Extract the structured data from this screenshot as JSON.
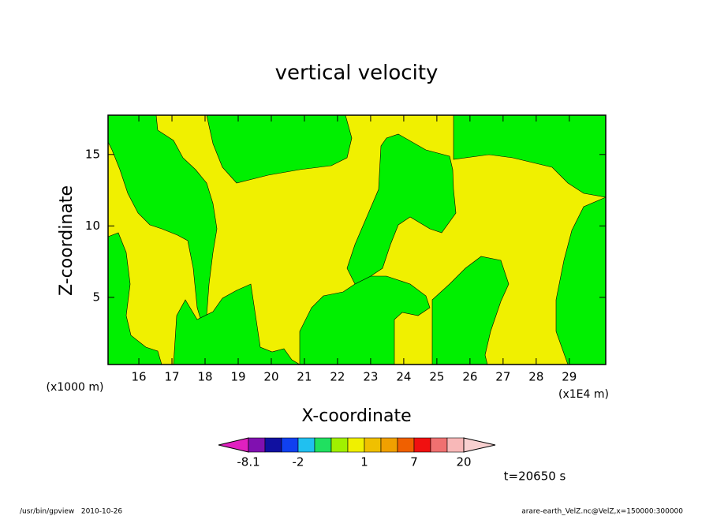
{
  "chart_data": {
    "type": "contour",
    "title": "vertical velocity",
    "x_label": "X-coordinate",
    "y_label": "Z-coordinate",
    "x_unit": "(x1E4 m)",
    "y_unit": "(x1000 m)",
    "xlim": [
      15.07,
      30.1
    ],
    "xticks": [
      16,
      17,
      18,
      19,
      20,
      21,
      22,
      23,
      24,
      25,
      26,
      27,
      28,
      29
    ],
    "ylim": [
      0.3,
      17.75
    ],
    "yticks": [
      5,
      10,
      15
    ],
    "colorbar": {
      "levels": [
        -8.1,
        -5,
        -3,
        -2,
        -1,
        -0.5,
        0,
        1,
        2,
        4,
        7,
        10,
        15,
        20
      ],
      "colors": [
        "#e020c0",
        "#8010b0",
        "#1010a0",
        "#1040f0",
        "#20c0f0",
        "#20e060",
        "#a0f000",
        "#f0f000",
        "#f0c000",
        "#f0a000",
        "#f06000",
        "#f01010",
        "#f07070",
        "#f8b8b8",
        "#f8d0d0"
      ],
      "ticks": [
        -8.1,
        -2,
        1,
        7,
        20
      ]
    },
    "time_label": "t=20650 s",
    "footer_left": "/usr/bin/gpview   2010-10-26",
    "footer_right": "arare-earth_VelZ.nc@VelZ,x=150000:300000"
  }
}
